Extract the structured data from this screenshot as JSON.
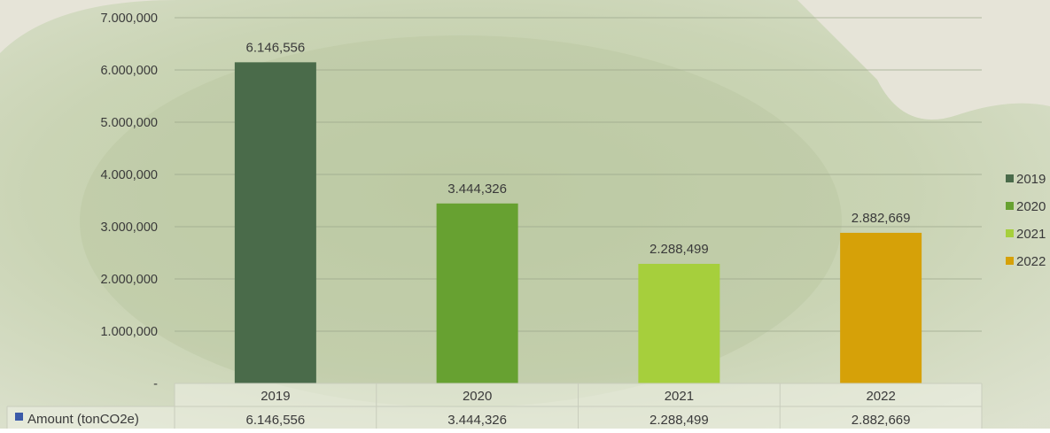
{
  "chart_data": {
    "type": "bar",
    "categories": [
      "2019",
      "2020",
      "2021",
      "2022"
    ],
    "values": [
      6146556,
      3444326,
      2288499,
      2882669
    ],
    "value_labels": [
      "6.146,556",
      "3.444,326",
      "2.288,499",
      "2.882,669"
    ],
    "colors": [
      "#4a6b4a",
      "#67a131",
      "#a6cf3c",
      "#d6a108"
    ],
    "ylim": [
      0,
      7000000
    ],
    "yticks": [
      {
        "value": 0,
        "label": "-"
      },
      {
        "value": 1000000,
        "label": "1.000,000"
      },
      {
        "value": 2000000,
        "label": "2.000,000"
      },
      {
        "value": 3000000,
        "label": "3.000,000"
      },
      {
        "value": 4000000,
        "label": "4.000,000"
      },
      {
        "value": 5000000,
        "label": "5.000,000"
      },
      {
        "value": 6000000,
        "label": "6.000,000"
      },
      {
        "value": 7000000,
        "label": "7.000,000"
      }
    ],
    "grid": true,
    "legend": {
      "placement": "right",
      "entries": [
        "2019",
        "2020",
        "2021",
        "2022"
      ]
    },
    "data_table": {
      "row_label": "Amount (tonCO2e)",
      "row_marker_color": "#3b5aa8",
      "values": [
        "6.146,556",
        "3.444,326",
        "2.288,499",
        "2.882,669"
      ]
    }
  }
}
